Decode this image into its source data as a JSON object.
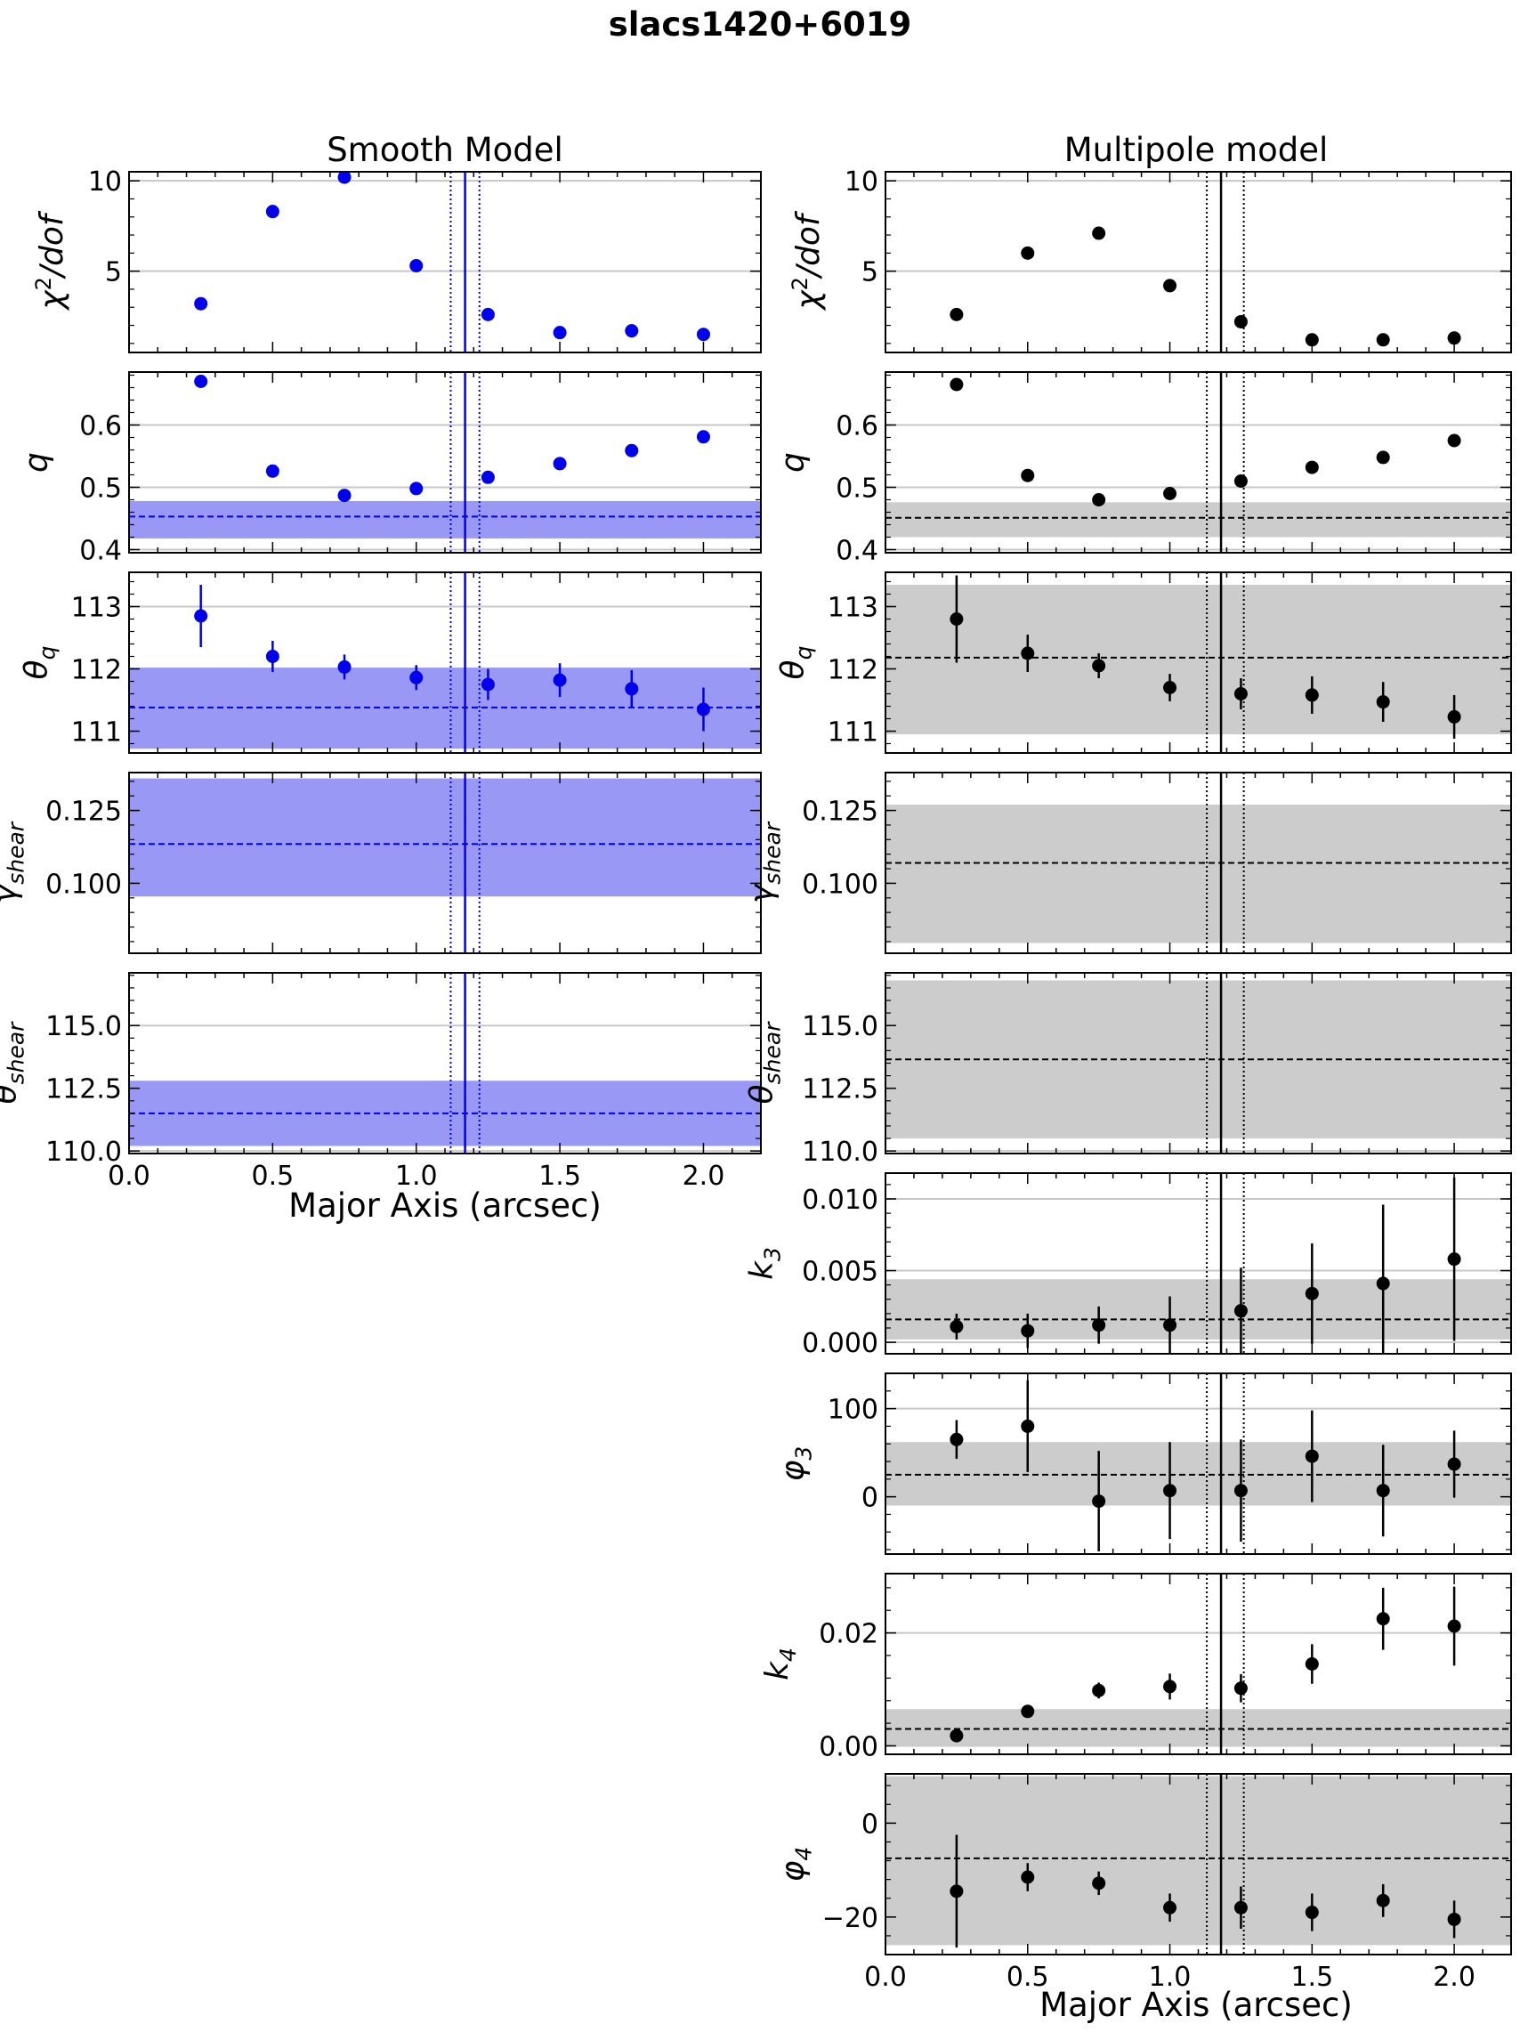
{
  "figure": {
    "title": "slacs1420+6019",
    "left_column_title": "Smooth Model",
    "right_column_title": "Multipole model",
    "xlabel": "Major Axis (arcsec)",
    "x_ticks": [
      "0.0",
      "0.5",
      "1.0",
      "1.5",
      "2.0"
    ]
  },
  "colors": {
    "smooth": "#0000ee",
    "smooth_band": "#9999f5",
    "multipole": "#000000",
    "multipole_band": "#cccccc",
    "grid": "#c8c8c8"
  },
  "chart_data": [
    {
      "id": "smooth-chi2",
      "type": "scatter",
      "model": "smooth",
      "ylabel": "χ²/dof",
      "xlim": [
        0,
        2.2
      ],
      "ylim": [
        0.5,
        10.5
      ],
      "yticks": [
        {
          "v": 5,
          "label": "5"
        },
        {
          "v": 10,
          "label": "10"
        }
      ],
      "points": [
        {
          "x": 0.25,
          "y": 3.2
        },
        {
          "x": 0.5,
          "y": 8.3
        },
        {
          "x": 0.75,
          "y": 10.2
        },
        {
          "x": 1.0,
          "y": 5.3
        },
        {
          "x": 1.25,
          "y": 2.6
        },
        {
          "x": 1.5,
          "y": 1.6
        },
        {
          "x": 1.75,
          "y": 1.7
        },
        {
          "x": 2.0,
          "y": 1.5
        }
      ],
      "vline": 1.17,
      "vline_dotted": [
        1.12,
        1.22
      ]
    },
    {
      "id": "smooth-q",
      "type": "scatter",
      "model": "smooth",
      "ylabel": "q",
      "xlim": [
        0,
        2.2
      ],
      "ylim": [
        0.395,
        0.685
      ],
      "yticks": [
        {
          "v": 0.4,
          "label": "0.4"
        },
        {
          "v": 0.5,
          "label": "0.5"
        },
        {
          "v": 0.6,
          "label": "0.6"
        }
      ],
      "points": [
        {
          "x": 0.25,
          "y": 0.67
        },
        {
          "x": 0.5,
          "y": 0.526
        },
        {
          "x": 0.75,
          "y": 0.487
        },
        {
          "x": 1.0,
          "y": 0.498
        },
        {
          "x": 1.25,
          "y": 0.516
        },
        {
          "x": 1.5,
          "y": 0.538
        },
        {
          "x": 1.75,
          "y": 0.559
        },
        {
          "x": 2.0,
          "y": 0.581
        }
      ],
      "band": [
        0.418,
        0.478
      ],
      "mean": 0.453,
      "vline": 1.17,
      "vline_dotted": [
        1.12,
        1.22
      ]
    },
    {
      "id": "smooth-theta-q",
      "type": "scatter",
      "model": "smooth",
      "ylabel": "θ_q",
      "xlim": [
        0,
        2.2
      ],
      "ylim": [
        110.65,
        113.55
      ],
      "yticks": [
        {
          "v": 111,
          "label": "111"
        },
        {
          "v": 112,
          "label": "112"
        },
        {
          "v": 113,
          "label": "113"
        }
      ],
      "points": [
        {
          "x": 0.25,
          "y": 112.85,
          "err": 0.5
        },
        {
          "x": 0.5,
          "y": 112.2,
          "err": 0.25
        },
        {
          "x": 0.75,
          "y": 112.03,
          "err": 0.2
        },
        {
          "x": 1.0,
          "y": 111.86,
          "err": 0.2
        },
        {
          "x": 1.25,
          "y": 111.75,
          "err": 0.25
        },
        {
          "x": 1.5,
          "y": 111.82,
          "err": 0.27
        },
        {
          "x": 1.75,
          "y": 111.68,
          "err": 0.3
        },
        {
          "x": 2.0,
          "y": 111.35,
          "err": 0.35
        }
      ],
      "band": [
        110.72,
        112.02
      ],
      "mean": 111.38,
      "vline": 1.17,
      "vline_dotted": [
        1.12,
        1.22
      ]
    },
    {
      "id": "smooth-gamma-shear",
      "type": "scatter",
      "model": "smooth",
      "ylabel": "γ_shear",
      "xlim": [
        0,
        2.2
      ],
      "ylim": [
        0.076,
        0.138
      ],
      "yticks": [
        {
          "v": 0.1,
          "label": "0.100"
        },
        {
          "v": 0.125,
          "label": "0.125"
        }
      ],
      "points": [],
      "band": [
        0.0955,
        0.136
      ],
      "mean": 0.1135,
      "vline": 1.17,
      "vline_dotted": [
        1.12,
        1.22
      ]
    },
    {
      "id": "smooth-theta-shear",
      "type": "scatter",
      "model": "smooth",
      "ylabel": "θ_shear",
      "xlim": [
        0,
        2.2
      ],
      "ylim": [
        109.9,
        117.1
      ],
      "yticks": [
        {
          "v": 110,
          "label": "110.0"
        },
        {
          "v": 112.5,
          "label": "112.5"
        },
        {
          "v": 115,
          "label": "115.0"
        }
      ],
      "points": [],
      "band": [
        110.2,
        112.8
      ],
      "mean": 111.5,
      "vline": 1.17,
      "vline_dotted": [
        1.12,
        1.22
      ]
    },
    {
      "id": "multipole-chi2",
      "type": "scatter",
      "model": "multipole",
      "ylabel": "χ²/dof",
      "xlim": [
        0,
        2.2
      ],
      "ylim": [
        0.5,
        10.5
      ],
      "yticks": [
        {
          "v": 5,
          "label": "5"
        },
        {
          "v": 10,
          "label": "10"
        }
      ],
      "points": [
        {
          "x": 0.25,
          "y": 2.6
        },
        {
          "x": 0.5,
          "y": 6.0
        },
        {
          "x": 0.75,
          "y": 7.1
        },
        {
          "x": 1.0,
          "y": 4.2
        },
        {
          "x": 1.25,
          "y": 2.2
        },
        {
          "x": 1.5,
          "y": 1.2
        },
        {
          "x": 1.75,
          "y": 1.2
        },
        {
          "x": 2.0,
          "y": 1.3
        }
      ],
      "vline": 1.18,
      "vline_dotted": [
        1.13,
        1.26
      ]
    },
    {
      "id": "multipole-q",
      "type": "scatter",
      "model": "multipole",
      "ylabel": "q",
      "xlim": [
        0,
        2.2
      ],
      "ylim": [
        0.395,
        0.685
      ],
      "yticks": [
        {
          "v": 0.4,
          "label": "0.4"
        },
        {
          "v": 0.5,
          "label": "0.5"
        },
        {
          "v": 0.6,
          "label": "0.6"
        }
      ],
      "points": [
        {
          "x": 0.25,
          "y": 0.665
        },
        {
          "x": 0.5,
          "y": 0.519
        },
        {
          "x": 0.75,
          "y": 0.48
        },
        {
          "x": 1.0,
          "y": 0.49
        },
        {
          "x": 1.25,
          "y": 0.51
        },
        {
          "x": 1.5,
          "y": 0.532
        },
        {
          "x": 1.75,
          "y": 0.548
        },
        {
          "x": 2.0,
          "y": 0.575
        }
      ],
      "band": [
        0.42,
        0.476
      ],
      "mean": 0.451,
      "vline": 1.18,
      "vline_dotted": [
        1.13,
        1.26
      ]
    },
    {
      "id": "multipole-theta-q",
      "type": "scatter",
      "model": "multipole",
      "ylabel": "θ_q",
      "xlim": [
        0,
        2.2
      ],
      "ylim": [
        110.65,
        113.55
      ],
      "yticks": [
        {
          "v": 111,
          "label": "111"
        },
        {
          "v": 112,
          "label": "112"
        },
        {
          "v": 113,
          "label": "113"
        }
      ],
      "points": [
        {
          "x": 0.25,
          "y": 112.8,
          "err": 0.7
        },
        {
          "x": 0.5,
          "y": 112.25,
          "err": 0.3
        },
        {
          "x": 0.75,
          "y": 112.05,
          "err": 0.2
        },
        {
          "x": 1.0,
          "y": 111.7,
          "err": 0.22
        },
        {
          "x": 1.25,
          "y": 111.6,
          "err": 0.25
        },
        {
          "x": 1.5,
          "y": 111.58,
          "err": 0.3
        },
        {
          "x": 1.75,
          "y": 111.47,
          "err": 0.32
        },
        {
          "x": 2.0,
          "y": 111.23,
          "err": 0.35
        }
      ],
      "band": [
        110.95,
        113.35
      ],
      "mean": 112.18,
      "vline": 1.18,
      "vline_dotted": [
        1.13,
        1.26
      ]
    },
    {
      "id": "multipole-gamma-shear",
      "type": "scatter",
      "model": "multipole",
      "ylabel": "γ_shear",
      "xlim": [
        0,
        2.2
      ],
      "ylim": [
        0.076,
        0.138
      ],
      "yticks": [
        {
          "v": 0.1,
          "label": "0.100"
        },
        {
          "v": 0.125,
          "label": "0.125"
        }
      ],
      "points": [],
      "band": [
        0.0795,
        0.127
      ],
      "mean": 0.107,
      "vline": 1.18,
      "vline_dotted": [
        1.13,
        1.26
      ]
    },
    {
      "id": "multipole-theta-shear",
      "type": "scatter",
      "model": "multipole",
      "ylabel": "θ_shear",
      "xlim": [
        0,
        2.2
      ],
      "ylim": [
        109.9,
        117.1
      ],
      "yticks": [
        {
          "v": 110,
          "label": "110.0"
        },
        {
          "v": 112.5,
          "label": "112.5"
        },
        {
          "v": 115,
          "label": "115.0"
        }
      ],
      "points": [],
      "band": [
        110.5,
        116.8
      ],
      "mean": 113.65,
      "vline": 1.18,
      "vline_dotted": [
        1.13,
        1.26
      ]
    },
    {
      "id": "multipole-k3",
      "type": "scatter",
      "model": "multipole",
      "ylabel": "k_3",
      "xlim": [
        0,
        2.2
      ],
      "ylim": [
        -0.0008,
        0.0118
      ],
      "yticks": [
        {
          "v": 0,
          "label": "0.000"
        },
        {
          "v": 0.005,
          "label": "0.005"
        },
        {
          "v": 0.01,
          "label": "0.010"
        }
      ],
      "points": [
        {
          "x": 0.25,
          "y": 0.0011,
          "err": 0.0009
        },
        {
          "x": 0.5,
          "y": 0.0008,
          "err": 0.0012
        },
        {
          "x": 0.75,
          "y": 0.0012,
          "err": 0.0013
        },
        {
          "x": 1.0,
          "y": 0.0012,
          "err": 0.002
        },
        {
          "x": 1.25,
          "y": 0.0022,
          "err": 0.003
        },
        {
          "x": 1.5,
          "y": 0.0034,
          "err": 0.0035
        },
        {
          "x": 1.75,
          "y": 0.0041,
          "err": 0.0055
        },
        {
          "x": 2.0,
          "y": 0.0058,
          "err": 0.0057
        }
      ],
      "band": [
        0.0002,
        0.0044
      ],
      "mean": 0.0016,
      "vline": 1.18,
      "vline_dotted": [
        1.13,
        1.26
      ]
    },
    {
      "id": "multipole-phi3",
      "type": "scatter",
      "model": "multipole",
      "ylabel": "φ_3",
      "xlim": [
        0,
        2.2
      ],
      "ylim": [
        -65,
        140
      ],
      "yticks": [
        {
          "v": 0,
          "label": "0"
        },
        {
          "v": 100,
          "label": "100"
        }
      ],
      "points": [
        {
          "x": 0.25,
          "y": 65,
          "err": 22
        },
        {
          "x": 0.5,
          "y": 80,
          "err": 52
        },
        {
          "x": 0.75,
          "y": -5,
          "err": 57
        },
        {
          "x": 1.0,
          "y": 7,
          "err": 55
        },
        {
          "x": 1.25,
          "y": 7,
          "err": 58
        },
        {
          "x": 1.5,
          "y": 46,
          "err": 52
        },
        {
          "x": 1.75,
          "y": 7,
          "err": 52
        },
        {
          "x": 2.0,
          "y": 37,
          "err": 38
        }
      ],
      "band": [
        -10,
        62
      ],
      "mean": 25,
      "vline": 1.18,
      "vline_dotted": [
        1.13,
        1.26
      ]
    },
    {
      "id": "multipole-k4",
      "type": "scatter",
      "model": "multipole",
      "ylabel": "k_4",
      "xlim": [
        0,
        2.2
      ],
      "ylim": [
        -0.0015,
        0.0305
      ],
      "yticks": [
        {
          "v": 0,
          "label": "0.00"
        },
        {
          "v": 0.02,
          "label": "0.02"
        }
      ],
      "points": [
        {
          "x": 0.25,
          "y": 0.0018,
          "err": 0.0005
        },
        {
          "x": 0.5,
          "y": 0.0061,
          "err": 0.0009
        },
        {
          "x": 0.75,
          "y": 0.0098,
          "err": 0.0014
        },
        {
          "x": 1.0,
          "y": 0.0105,
          "err": 0.0023
        },
        {
          "x": 1.25,
          "y": 0.0102,
          "err": 0.0025
        },
        {
          "x": 1.5,
          "y": 0.0145,
          "err": 0.0035
        },
        {
          "x": 1.75,
          "y": 0.0225,
          "err": 0.0055
        },
        {
          "x": 2.0,
          "y": 0.0212,
          "err": 0.007
        }
      ],
      "band": [
        0,
        0.0065
      ],
      "mean": 0.003,
      "vline": 1.18,
      "vline_dotted": [
        1.13,
        1.26
      ]
    },
    {
      "id": "multipole-phi4",
      "type": "scatter",
      "model": "multipole",
      "ylabel": "φ_4",
      "xlim": [
        0,
        2.2
      ],
      "ylim": [
        -28,
        10.5
      ],
      "yticks": [
        {
          "v": -20,
          "label": "−20"
        },
        {
          "v": 0,
          "label": "0"
        }
      ],
      "points": [
        {
          "x": 0.25,
          "y": -14.5,
          "err": 12
        },
        {
          "x": 0.5,
          "y": -11.5,
          "err": 3
        },
        {
          "x": 0.75,
          "y": -12.8,
          "err": 2.5
        },
        {
          "x": 1.0,
          "y": -18,
          "err": 3
        },
        {
          "x": 1.25,
          "y": -18,
          "err": 4.5
        },
        {
          "x": 1.5,
          "y": -19,
          "err": 4
        },
        {
          "x": 1.75,
          "y": -16.5,
          "err": 3.5
        },
        {
          "x": 2.0,
          "y": -20.5,
          "err": 4
        }
      ],
      "band": [
        -26,
        10
      ],
      "mean": -7.5,
      "vline": 1.18,
      "vline_dotted": [
        1.13,
        1.26
      ]
    }
  ]
}
